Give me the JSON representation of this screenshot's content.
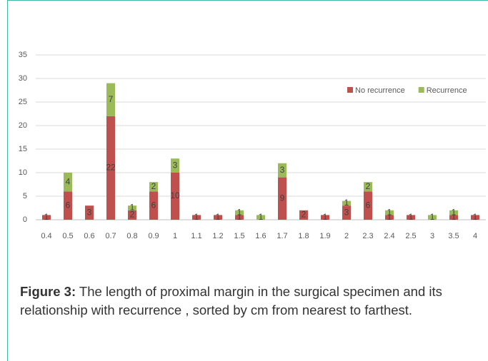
{
  "chart_data": {
    "type": "stacked_bar",
    "categories": [
      "0.4",
      "0.5",
      "0.6",
      "0.7",
      "0.8",
      "0.9",
      "1",
      "1.1",
      "1.2",
      "1.5",
      "1.6",
      "1.7",
      "1.8",
      "1.9",
      "2",
      "2.3",
      "2.4",
      "2.5",
      "3",
      "3.5",
      "4"
    ],
    "series": [
      {
        "name": "No recurrence",
        "color": "#c0504d",
        "values": [
          1,
          6,
          3,
          22,
          2,
          6,
          10,
          1,
          1,
          1,
          0,
          9,
          2,
          1,
          3,
          6,
          1,
          1,
          0,
          1,
          1
        ]
      },
      {
        "name": "Recurrence",
        "color": "#9bbb59",
        "values": [
          0,
          4,
          0,
          7,
          1,
          2,
          3,
          0,
          0,
          1,
          1,
          3,
          0,
          0,
          1,
          2,
          1,
          0,
          1,
          1,
          0
        ]
      }
    ],
    "ylim": [
      0,
      35
    ],
    "yticks": [
      0,
      5,
      10,
      15,
      20,
      25,
      30,
      35
    ],
    "grid": true,
    "legend": "top-right"
  },
  "caption": {
    "label": "Figure 3:",
    "text": " The length of proximal margin in the surgical specimen and its relationship with recurrence , sorted by cm from nearest to farthest."
  }
}
